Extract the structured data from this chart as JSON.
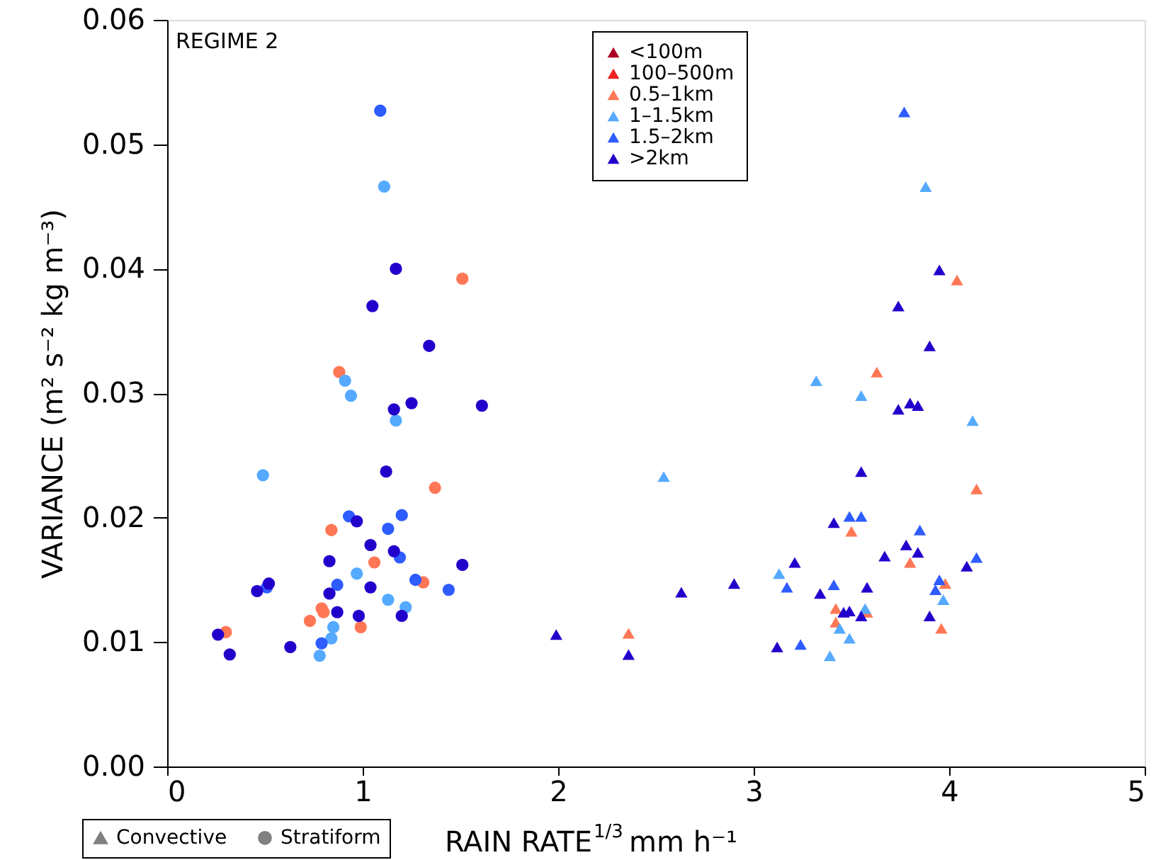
{
  "chart_data": {
    "type": "scatter",
    "xlabel": "RAIN RATE$^{1/3}$ mm h⁻¹",
    "ylabel": "VARIANCE (m² s⁻² kg m⁻³)",
    "annotations": [
      "REGIME 2",
      "Convective",
      "Stratiform"
    ],
    "xlim": [
      0,
      5
    ],
    "xticks": [
      0,
      1,
      2,
      3,
      4,
      5
    ],
    "ylim": [
      0,
      0.06
    ],
    "yticks": [
      {
        "value": 0,
        "label": "0.00"
      },
      {
        "value": 0.01,
        "label": "0.01"
      },
      {
        "value": 0.02,
        "label": "0.02"
      },
      {
        "value": 0.03,
        "label": "0.03"
      },
      {
        "value": 0.04,
        "label": "0.04"
      },
      {
        "value": 0.05,
        "label": "0.05"
      },
      {
        "value": 0.06,
        "label": "0.06"
      }
    ],
    "grid": false,
    "legend": "top",
    "series": [
      {
        "name": "<100m",
        "color": "#aa0022",
        "marker": "triangle"
      },
      {
        "name": "100–500m",
        "color": "#ee2222",
        "marker": "triangle"
      },
      {
        "name": "0.5–1km",
        "color": "#ff7755",
        "marker": "triangle",
        "x": [
          4.04,
          3.63,
          4.14,
          3.5,
          3.8,
          3.98,
          3.42,
          3.58,
          3.42,
          3.96,
          2.36
        ],
        "values": [
          0.0391,
          0.0317,
          0.0223,
          0.0189,
          0.0164,
          0.0147,
          0.0127,
          0.0124,
          0.0116,
          0.0111,
          0.0107
        ]
      },
      {
        "name": "1–1.5km",
        "color": "#55aaff",
        "marker": "triangle",
        "x": [
          3.88,
          3.32,
          3.55,
          4.12,
          2.54,
          3.13,
          3.97,
          3.57,
          3.44,
          3.49,
          3.39
        ],
        "values": [
          0.0466,
          0.031,
          0.0298,
          0.0278,
          0.0233,
          0.0155,
          0.0134,
          0.0127,
          0.0111,
          0.0103,
          0.0089
        ]
      },
      {
        "name": "1.5–2km",
        "color": "#2e5cff",
        "marker": "triangle",
        "x": [
          3.77,
          3.49,
          3.55,
          3.85,
          4.14,
          3.17,
          3.41,
          3.95,
          3.93,
          3.24
        ],
        "values": [
          0.0526,
          0.0201,
          0.0201,
          0.019,
          0.0168,
          0.0144,
          0.0146,
          0.015,
          0.0142,
          0.0098
        ]
      },
      {
        "name": ">2km",
        "color": "#2200cc",
        "marker": "triangle",
        "x": [
          3.95,
          3.74,
          3.9,
          3.74,
          3.8,
          3.84,
          3.55,
          3.41,
          3.78,
          3.84,
          3.67,
          3.21,
          4.09,
          2.9,
          3.58,
          2.63,
          3.34,
          3.49,
          3.46,
          3.55,
          3.9,
          1.99,
          3.12,
          2.36
        ],
        "values": [
          0.0399,
          0.037,
          0.0338,
          0.0287,
          0.0292,
          0.029,
          0.0237,
          0.0196,
          0.0178,
          0.0172,
          0.0169,
          0.0164,
          0.0161,
          0.0147,
          0.0144,
          0.014,
          0.0139,
          0.0125,
          0.0124,
          0.0121,
          0.0121,
          0.0106,
          0.0096,
          0.009
        ]
      },
      {
        "color": "#ff7755",
        "marker": "circle",
        "x": [
          1.51,
          0.88,
          1.37,
          0.84,
          1.06,
          1.31,
          0.79,
          0.8,
          0.73,
          0.99,
          0.3
        ],
        "values": [
          0.0392,
          0.0317,
          0.0224,
          0.019,
          0.0164,
          0.0148,
          0.0127,
          0.0124,
          0.0117,
          0.0112,
          0.0108
        ]
      },
      {
        "color": "#55aaff",
        "marker": "circle",
        "x": [
          1.11,
          0.91,
          0.94,
          1.17,
          0.49,
          0.97,
          1.13,
          1.22,
          0.85,
          0.84,
          0.78
        ],
        "values": [
          0.0466,
          0.031,
          0.0298,
          0.0278,
          0.0234,
          0.0155,
          0.0134,
          0.0128,
          0.0112,
          0.0103,
          0.0089
        ]
      },
      {
        "color": "#2e5cff",
        "marker": "circle",
        "x": [
          1.09,
          0.93,
          1.2,
          1.13,
          1.19,
          0.51,
          0.87,
          1.27,
          1.44,
          0.79
        ],
        "values": [
          0.0527,
          0.0201,
          0.0202,
          0.0191,
          0.0168,
          0.0144,
          0.0146,
          0.015,
          0.0142,
          0.0099
        ]
      },
      {
        "color": "#2200cc",
        "marker": "circle",
        "x": [
          1.17,
          1.05,
          1.34,
          1.16,
          1.25,
          1.61,
          1.12,
          0.97,
          1.04,
          1.16,
          0.83,
          1.51,
          0.52,
          0.46,
          1.04,
          0.83,
          0.87,
          0.98,
          1.2,
          0.26,
          0.63,
          0.32
        ],
        "values": [
          0.04,
          0.037,
          0.0338,
          0.0287,
          0.0292,
          0.029,
          0.0237,
          0.0197,
          0.0178,
          0.0173,
          0.0165,
          0.0162,
          0.0147,
          0.0141,
          0.0144,
          0.0139,
          0.0124,
          0.0121,
          0.0121,
          0.0106,
          0.0096,
          0.009
        ]
      }
    ]
  }
}
